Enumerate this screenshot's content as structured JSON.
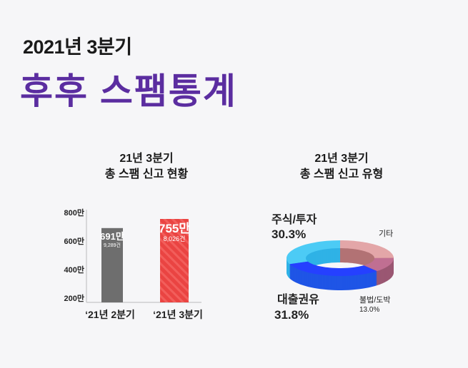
{
  "header": {
    "subtitle": "2021년 3분기",
    "title": "후후 스팸통계"
  },
  "chart_data": [
    {
      "type": "bar",
      "title": [
        "21년 3분기",
        "총 스팸 신고 현황"
      ],
      "categories": [
        "‘21년 2분기",
        "‘21년 3분기"
      ],
      "values": [
        691,
        755
      ],
      "value_labels": [
        "691만",
        "755만"
      ],
      "sub_labels": [
        "9,289건",
        "8,026건"
      ],
      "colors": [
        "#6e6e6e",
        "#e8403f"
      ],
      "yticks": [
        {
          "v": 200,
          "label": "200만"
        },
        {
          "v": 400,
          "label": "400만"
        },
        {
          "v": 600,
          "label": "600만"
        },
        {
          "v": 800,
          "label": "800만"
        }
      ],
      "ylim": [
        200,
        800
      ],
      "unit": "만"
    },
    {
      "type": "pie",
      "subtype": "3d-donut",
      "title": [
        "21년 3분기",
        "총 스팸 신고 유형"
      ],
      "slices": [
        {
          "name": "기타",
          "value": null,
          "label": "",
          "color": "#e3a6a8",
          "side": "#b27274"
        },
        {
          "name": "불법/도박",
          "value": 13.0,
          "label": "13.0%",
          "color": "#c06f92",
          "side": "#9a5772"
        },
        {
          "name": "대출권유",
          "value": 31.8,
          "label": "31.8%",
          "color": "#2540ff",
          "side": "#1f55e6"
        },
        {
          "name": "주식/투자",
          "value": 30.3,
          "label": "30.3%",
          "color": "#4ccbf5",
          "side": "#2fb2e6"
        }
      ]
    }
  ]
}
